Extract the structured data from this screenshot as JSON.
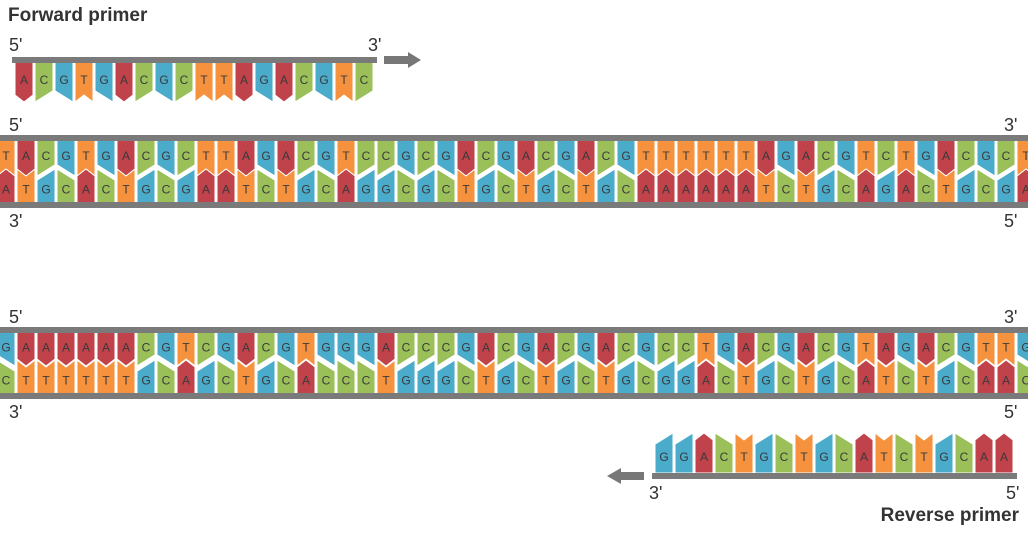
{
  "colors": {
    "A": "#c0424a",
    "T": "#f6923d",
    "G": "#4aabcb",
    "C": "#9bc05a",
    "backbone": "#7a7a7a",
    "arrow": "#777777",
    "text": "#333333"
  },
  "forward_primer": {
    "title": "Forward primer",
    "label_5": "5'",
    "label_3": "3'",
    "sequence": "ACGTGACGCTTAGACGTC"
  },
  "duplex_1": {
    "label_top_5": "5'",
    "label_top_3": "3'",
    "label_bottom_3": "3'",
    "label_bottom_5": "5'",
    "top_sequence": "TACGTGACGCTTAGACGTCCGCGACGACGACGTTTTTTAGACGTCTGACGCT",
    "bottom_sequence": "ATGCACTGCGAATCTGCAGGCGCTGCTGCTGCAAAAAATCTGCAGACTGCGA"
  },
  "duplex_2": {
    "label_top_5": "5'",
    "label_top_3": "3'",
    "label_bottom_3": "3'",
    "label_bottom_5": "5'",
    "top_sequence": "GAAAAAACGTCGACGTGGGACCCGACGACGACGCCTGACGACGTAGACGTTG",
    "bottom_sequence": "CTTTTTTGCAGCTGCACCCTGGGCTGCTGCTGCGGACTGCTGCATCTGCAAC"
  },
  "reverse_primer": {
    "title": "Reverse primer",
    "label_3": "3'",
    "label_5": "5'",
    "sequence": "GGACTGCTGCATCTGCAA"
  }
}
